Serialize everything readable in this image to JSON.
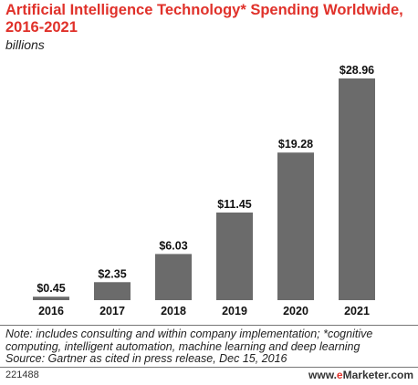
{
  "title": "Artificial Intelligence Technology* Spending Worldwide, 2016-2021",
  "subtitle": "billions",
  "chart_data": {
    "type": "bar",
    "title": "Artificial Intelligence Technology* Spending Worldwide, 2016-2021",
    "subtitle": "billions",
    "categories": [
      "2016",
      "2017",
      "2018",
      "2019",
      "2020",
      "2021"
    ],
    "values": [
      0.45,
      2.35,
      6.03,
      11.45,
      19.28,
      28.96
    ],
    "value_labels": [
      "$0.45",
      "$2.35",
      "$6.03",
      "$11.45",
      "$19.28",
      "$28.96"
    ],
    "ylim": [
      0,
      28.96
    ],
    "grid": false,
    "bar_color": "#6b6b6b"
  },
  "note_lines": [
    "Note: includes consulting and within company implementation; *cognitive",
    "computing, intelligent automation, machine learning and deep learning",
    "Source: Gartner as cited in press release, Dec 15, 2016"
  ],
  "footer": {
    "chart_id": "221488",
    "brand_prefix": "www.",
    "brand_e": "e",
    "brand_rest": "Marketer",
    "brand_suffix": ".com"
  },
  "colors": {
    "title": "#e0312a",
    "bar": "#6b6b6b",
    "brand_accent": "#e0312a"
  }
}
